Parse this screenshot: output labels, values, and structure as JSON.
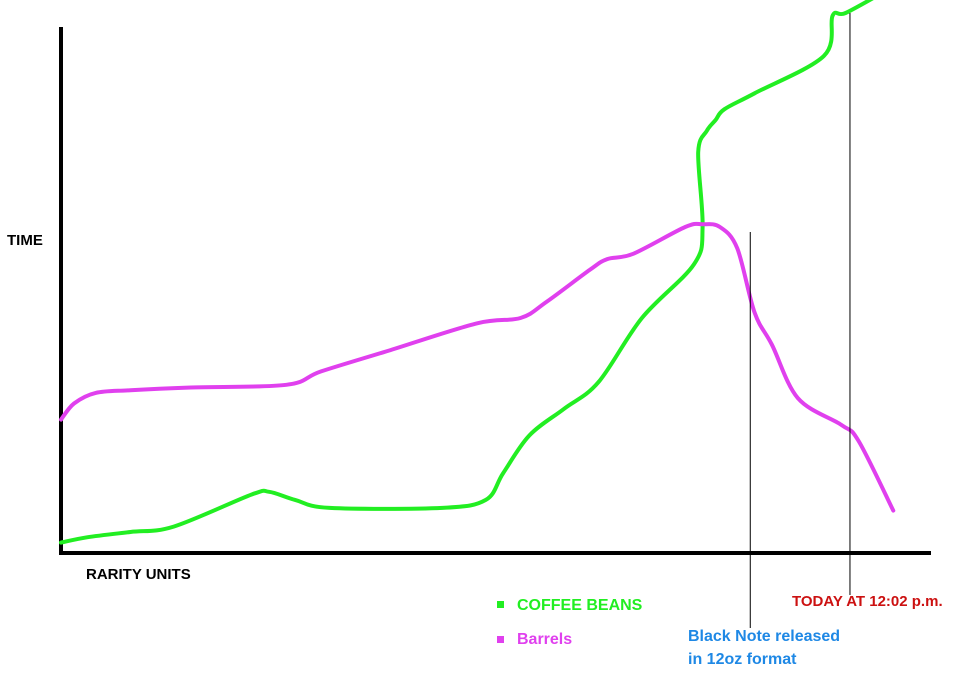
{
  "chart_data": {
    "type": "line",
    "title": "",
    "xlabel": "RARITY UNITS",
    "ylabel": "TIME",
    "xlim": [
      0,
      100
    ],
    "ylim": [
      0,
      100
    ],
    "grid": false,
    "legend_placement": "bottom-center",
    "series": [
      {
        "name": "COFFEE BEANS",
        "color": "#22ee22",
        "x": [
          0,
          3,
          8,
          13,
          22,
          24,
          27,
          31,
          44,
          49,
          51,
          54,
          58,
          62,
          67,
          73,
          74,
          73.5,
          74.5,
          75.5,
          76.5,
          80,
          88,
          89,
          90.5,
          95
        ],
        "y": [
          1,
          2,
          3,
          4,
          10,
          10.5,
          9,
          7.5,
          7.5,
          9,
          14,
          21,
          26,
          31,
          43,
          53,
          60,
          74,
          78,
          80,
          82,
          85,
          92,
          99.5,
          100,
          104
        ]
      },
      {
        "name": "Barrels",
        "color": "#e040ee",
        "x": [
          0,
          1.5,
          4,
          8,
          15,
          26,
          30,
          38,
          48,
          53,
          56,
          61,
          63,
          66,
          72,
          74,
          76,
          78,
          80,
          82,
          85,
          90,
          92,
          96
        ],
        "y": [
          24,
          27,
          29,
          29.5,
          30,
          30.5,
          33,
          37,
          42,
          43,
          46,
          52,
          54,
          55,
          60,
          60.5,
          60,
          56,
          44,
          38,
          28,
          23,
          20,
          7
        ]
      }
    ],
    "annotations": [
      {
        "x": 79.5,
        "line1": "Black Note released",
        "line2": "in 12oz format",
        "color": "#1e88e5"
      },
      {
        "x": 91,
        "text": "TODAY AT 12:02 p.m.",
        "color": "#cc1111"
      }
    ]
  }
}
